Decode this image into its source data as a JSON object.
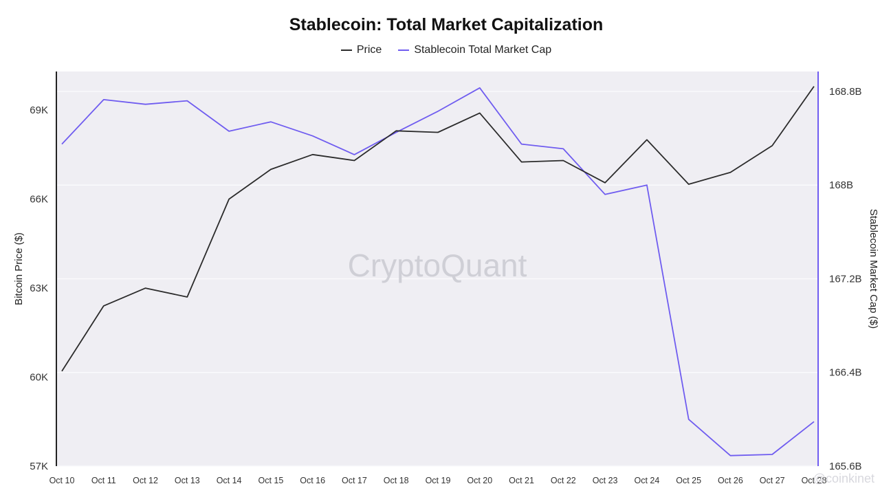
{
  "colors": {
    "price": "#2b2b2b",
    "stablecoin": "#6f5cf0",
    "plot_bg": "#efeef3",
    "grid": "#fafafc"
  },
  "watermark": "CryptoQuant",
  "footer_watermark": "@coinkinet",
  "chart_data": {
    "type": "line",
    "title": "Stablecoin: Total Market Capitalization",
    "x": [
      "Oct 10",
      "Oct 11",
      "Oct 12",
      "Oct 13",
      "Oct 14",
      "Oct 15",
      "Oct 16",
      "Oct 17",
      "Oct 18",
      "Oct 19",
      "Oct 20",
      "Oct 21",
      "Oct 22",
      "Oct 23",
      "Oct 24",
      "Oct 25",
      "Oct 26",
      "Oct 27",
      "Oct 28"
    ],
    "y_left": {
      "label": "Bitcoin Price ($)",
      "ticks": [
        57000,
        60000,
        63000,
        66000,
        69000
      ],
      "tick_labels": [
        "57K",
        "60K",
        "63K",
        "66K",
        "69K"
      ],
      "range": [
        57000,
        70300
      ]
    },
    "y_right": {
      "label": "Stablecoin Market Cap ($)",
      "ticks": [
        165.6,
        166.4,
        167.2,
        168,
        168.8
      ],
      "tick_labels": [
        "165.6B",
        "166.4B",
        "167.2B",
        "168B",
        "168.8B"
      ],
      "range": [
        165.6,
        168.97
      ]
    },
    "series": [
      {
        "name": "Price",
        "axis": "left",
        "values": [
          60200,
          62400,
          63000,
          62700,
          66000,
          67000,
          67500,
          67300,
          68300,
          68250,
          68900,
          67250,
          67300,
          66550,
          68000,
          66500,
          66900,
          67800,
          69800
        ]
      },
      {
        "name": "Stablecoin Total Market Cap",
        "axis": "right",
        "values": [
          168.35,
          168.73,
          168.69,
          168.72,
          168.46,
          168.54,
          168.42,
          168.26,
          168.45,
          168.63,
          168.83,
          168.35,
          168.31,
          167.92,
          168.0,
          166.0,
          165.69,
          165.7,
          165.98
        ]
      }
    ],
    "grid": true,
    "legend_position": "top-center"
  }
}
